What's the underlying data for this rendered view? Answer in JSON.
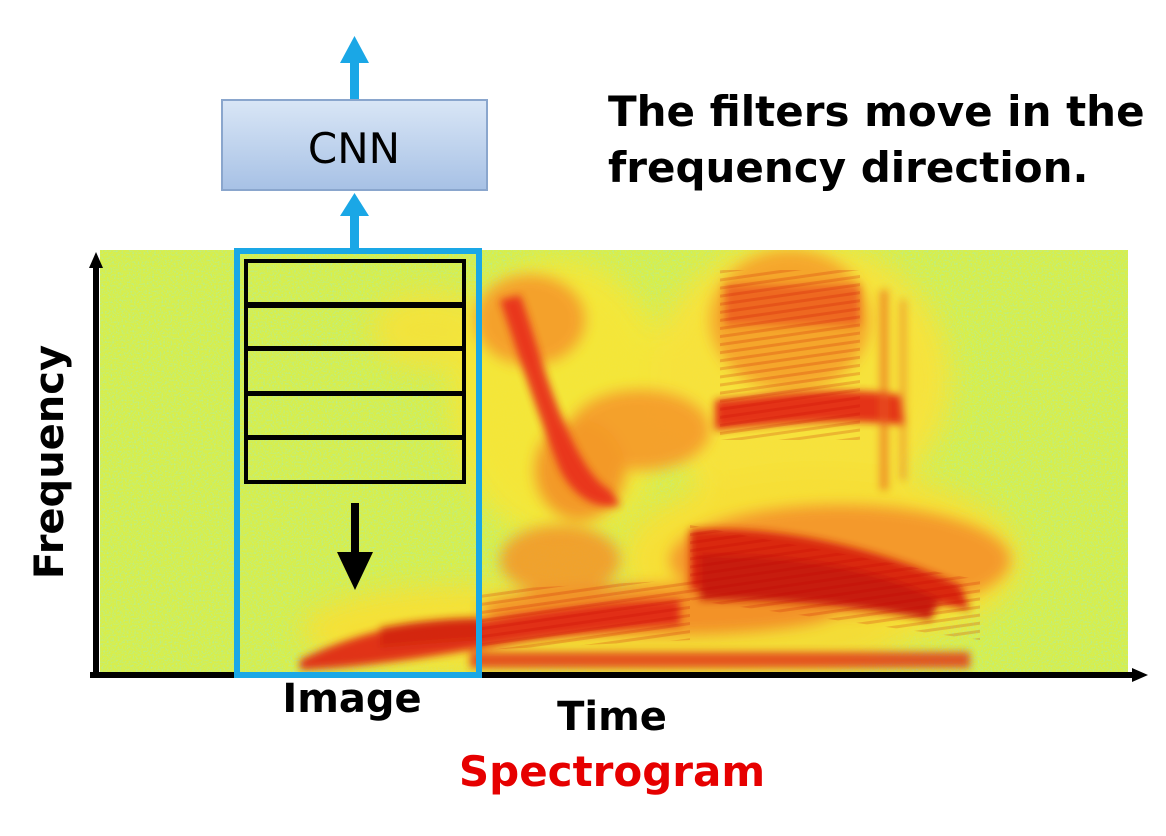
{
  "diagram": {
    "cnn_label": "CNN",
    "caption_lines": [
      "The filters move in the",
      "frequency direction."
    ],
    "y_axis_label": "Frequency",
    "x_axis_label": "Time",
    "window_label": "Image",
    "spectrogram_label": "Spectrogram"
  },
  "colors": {
    "accent_arrow": "#1aa7e6",
    "window_border": "#1aa7e6",
    "filter_border": "#000000",
    "cnn_fill_top": "#d6e4f5",
    "cnn_fill_bottom": "#a9c3e6",
    "cnn_border": "#7f9cc7",
    "spectrogram_label_color": "#e60000",
    "text_color": "#000000"
  },
  "icons": [
    "up-arrow-icon",
    "down-arrow-icon"
  ]
}
